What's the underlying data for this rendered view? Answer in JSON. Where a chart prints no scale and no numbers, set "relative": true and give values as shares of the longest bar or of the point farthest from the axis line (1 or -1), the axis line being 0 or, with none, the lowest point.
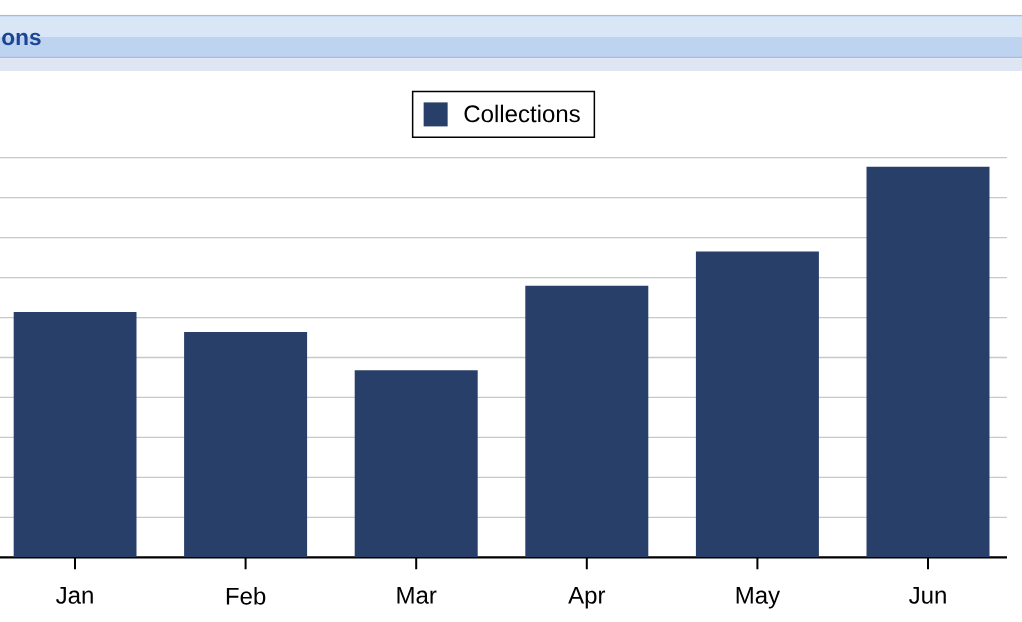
{
  "chart_data": {
    "type": "bar",
    "title": "ons",
    "categories": [
      "Jan",
      "Feb",
      "Mar",
      "Apr",
      "May",
      "Jun"
    ],
    "series": [
      {
        "name": "Collections",
        "color": "#283f69",
        "values": [
          0.628,
          0.577,
          0.479,
          0.695,
          0.783,
          1
        ]
      }
    ],
    "relative": true,
    "grid": "y",
    "legend": "top"
  }
}
